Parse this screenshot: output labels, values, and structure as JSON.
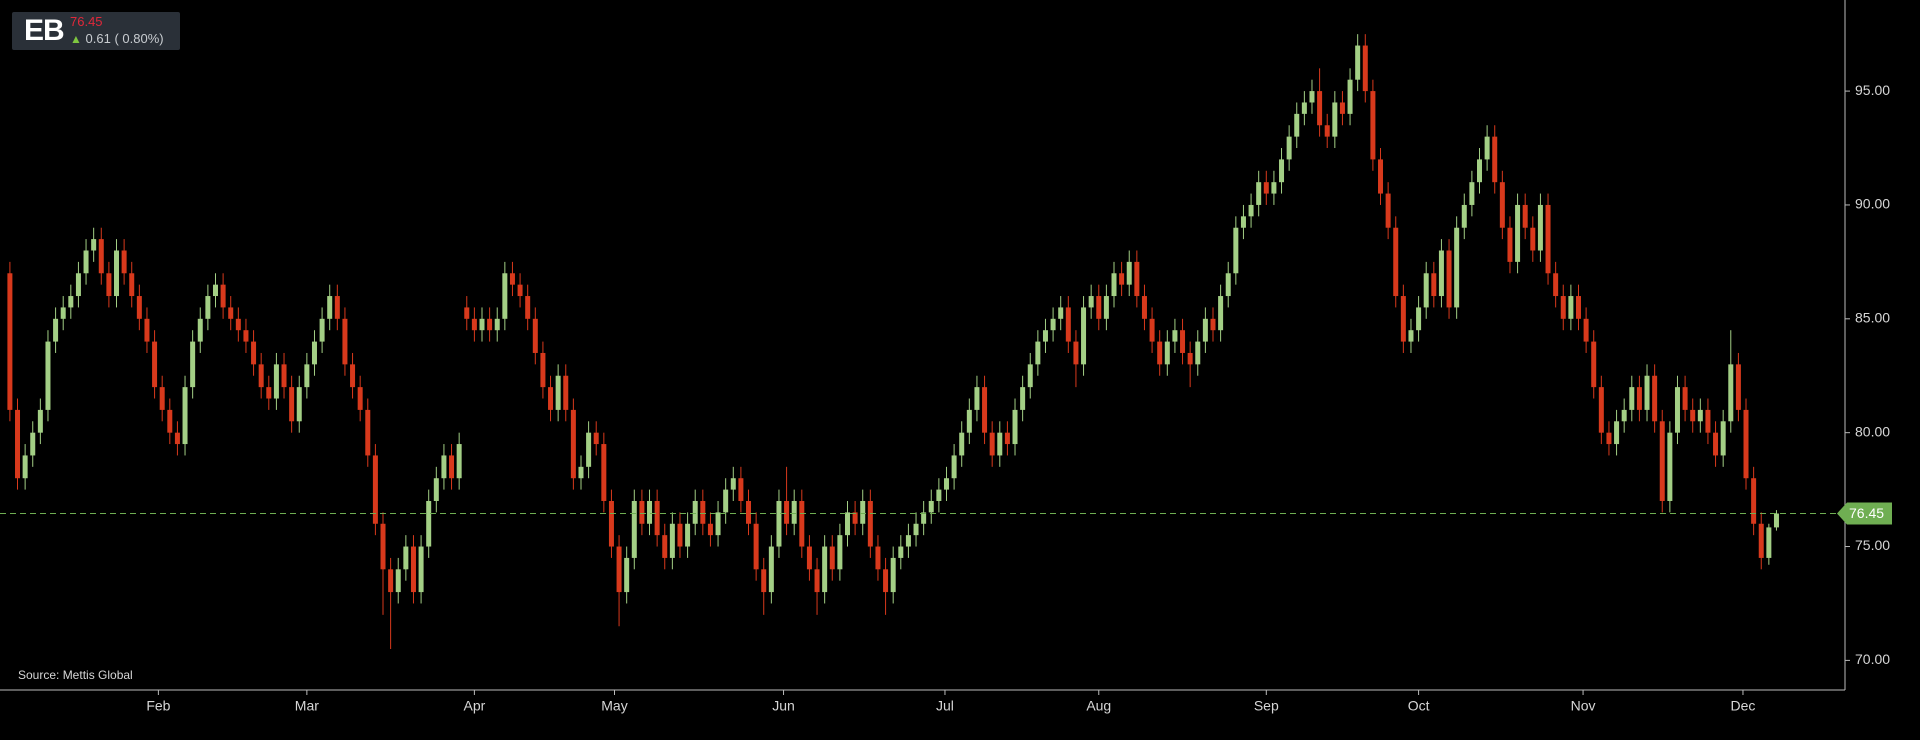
{
  "chart_data": {
    "type": "candlestick",
    "symbol": "EB",
    "last_price": 76.45,
    "change": 0.61,
    "change_percent_label": "( 0.80%)",
    "source": "Source: Mettis Global",
    "up_color": "#a3cf85",
    "down_color": "#d8391c",
    "last_price_color": "#6fae52",
    "ylim": [
      68.7,
      99
    ],
    "yticks": [
      {
        "value": 70,
        "label": "70.00"
      },
      {
        "value": 75,
        "label": "75.00"
      },
      {
        "value": 80,
        "label": "80.00"
      },
      {
        "value": 85,
        "label": "85.00"
      },
      {
        "value": 90,
        "label": "90.00"
      },
      {
        "value": 95,
        "label": "95.00"
      }
    ],
    "xlim": [
      -1.3,
      241
    ],
    "xticks": [
      {
        "value": 19.5,
        "label": "Feb"
      },
      {
        "value": 39,
        "label": "Mar"
      },
      {
        "value": 61,
        "label": "Apr"
      },
      {
        "value": 79.4,
        "label": "May"
      },
      {
        "value": 101.6,
        "label": "Jun"
      },
      {
        "value": 122.8,
        "label": "Jul"
      },
      {
        "value": 143,
        "label": "Aug"
      },
      {
        "value": 165,
        "label": "Sep"
      },
      {
        "value": 185,
        "label": "Oct"
      },
      {
        "value": 206.6,
        "label": "Nov"
      },
      {
        "value": 227.6,
        "label": "Dec"
      }
    ],
    "open": [
      87,
      81,
      78,
      79,
      80,
      81,
      84,
      85,
      85.5,
      86,
      87,
      88,
      88.5,
      87,
      86,
      88,
      87,
      86,
      85,
      84,
      82,
      81,
      80,
      79.5,
      82,
      84,
      85,
      86,
      86.5,
      85.5,
      85,
      84.5,
      84,
      83,
      82,
      81.5,
      83,
      82,
      80.5,
      82,
      83,
      84,
      85,
      86,
      85,
      83,
      82,
      81,
      79,
      76,
      74,
      73,
      74,
      75,
      73,
      75,
      77,
      78,
      79,
      78,
      85.5,
      85,
      84.5,
      85,
      84.5,
      85,
      87,
      86.5,
      86,
      85,
      83.5,
      82,
      81,
      82.5,
      81,
      78,
      78.5,
      80,
      79.5,
      77,
      75,
      73,
      74.5,
      77,
      76,
      77,
      75.5,
      74.5,
      76,
      75,
      76,
      77,
      76,
      75.5,
      76.5,
      77.5,
      78,
      77,
      76,
      74,
      73,
      75,
      77,
      76,
      77,
      75,
      74,
      73,
      75,
      74,
      75.5,
      76.5,
      76,
      77,
      75,
      74,
      73,
      74.5,
      75,
      75.5,
      76,
      76.5,
      77,
      77.5,
      78,
      79,
      80,
      81,
      82,
      80,
      79,
      80,
      79.5,
      81,
      82,
      83,
      84,
      84.5,
      85,
      85.5,
      84,
      83,
      85.5,
      86,
      85,
      86,
      87,
      86.5,
      87.5,
      86,
      85,
      84,
      83,
      84,
      84.5,
      83.5,
      83,
      84,
      85,
      84.5,
      86,
      87,
      89,
      89.5,
      90,
      91,
      90.5,
      91,
      92,
      93,
      94,
      94.5,
      95,
      93.5,
      93,
      94.5,
      94,
      95.5,
      97,
      95,
      92,
      90.5,
      89,
      86,
      84,
      84.5,
      85.5,
      87,
      86,
      88,
      85.5,
      89,
      90,
      91,
      92,
      93,
      91,
      89,
      87.5,
      90,
      89,
      88,
      90,
      87,
      86,
      85,
      86,
      85,
      84,
      82,
      80,
      79.5,
      80.5,
      81,
      82,
      81,
      82.5,
      80.5,
      77,
      80,
      82,
      81,
      80.5,
      81,
      80,
      79,
      80.5,
      83,
      81,
      78,
      76,
      74.5,
      75.84
    ],
    "high": [
      87.5,
      81.5,
      79.5,
      80.5,
      81.5,
      84.5,
      85.5,
      86,
      86.5,
      87.5,
      88.5,
      89,
      89,
      87.5,
      88.5,
      88.5,
      87.5,
      86.5,
      85.5,
      84.5,
      82.5,
      81.5,
      80.5,
      82.5,
      84.5,
      85.5,
      86.5,
      87,
      87,
      86,
      85.5,
      85,
      84.5,
      83.5,
      82.5,
      83.5,
      83.5,
      82.5,
      82.5,
      83.5,
      84.5,
      85.5,
      86.5,
      86.5,
      85.5,
      83.5,
      82.5,
      81.5,
      79.5,
      76.5,
      74.5,
      74.5,
      75.5,
      75.5,
      75.5,
      77.5,
      78.5,
      79.5,
      79.5,
      80,
      86,
      85.5,
      85.5,
      85.5,
      85.5,
      87.5,
      87.5,
      87,
      86.5,
      85.5,
      84,
      82.5,
      83,
      83,
      81.5,
      79,
      80.5,
      80.5,
      80,
      77.5,
      75.5,
      75,
      77.5,
      77.5,
      77.5,
      77.5,
      76,
      76.5,
      76.5,
      76.5,
      77.5,
      77.5,
      76.5,
      77,
      78,
      78.5,
      78.5,
      77.5,
      76.5,
      74.5,
      75.5,
      77.5,
      78.5,
      77.5,
      77.5,
      75.5,
      74.5,
      75.5,
      75.5,
      76,
      77,
      77,
      77.5,
      77.5,
      75.5,
      74.5,
      75,
      75.5,
      76,
      76.5,
      77,
      77.5,
      78,
      78.5,
      79.5,
      80.5,
      81.5,
      82.5,
      82.5,
      80.5,
      80.5,
      80.5,
      81.5,
      82.5,
      83.5,
      84.5,
      85,
      85.5,
      86,
      86,
      84.5,
      86,
      86.5,
      86.5,
      86.5,
      87.5,
      87.5,
      88,
      88,
      86.5,
      85.5,
      84.5,
      84.5,
      85,
      85,
      84,
      84.5,
      85.5,
      85.5,
      86.5,
      87.5,
      89.5,
      90,
      90.5,
      91.5,
      91.5,
      91.5,
      92.5,
      93.5,
      94.5,
      95,
      95.5,
      96,
      94,
      95,
      95,
      96,
      97.5,
      97.5,
      95.5,
      92.5,
      91,
      89.5,
      86.5,
      85,
      86,
      87.5,
      87.5,
      88.5,
      88.5,
      89.5,
      90.5,
      91.5,
      92.5,
      93.5,
      93.5,
      91.5,
      89.5,
      90.5,
      90.5,
      89.5,
      90.5,
      90.5,
      87.5,
      86.5,
      86.5,
      86.5,
      85.5,
      84.5,
      82.5,
      80.5,
      81,
      81.5,
      82.5,
      82.5,
      83,
      83,
      81,
      80.5,
      82.5,
      82.5,
      81.5,
      81.5,
      81.5,
      80.5,
      81,
      84.5,
      83.5,
      81.5,
      78.5,
      76.5,
      76,
      76.6
    ],
    "low": [
      80.5,
      77.5,
      77.5,
      78.5,
      79.5,
      80.5,
      83.5,
      84.5,
      85,
      85.5,
      86.5,
      87.5,
      86.5,
      85.5,
      85.5,
      86.5,
      85.5,
      84.5,
      83.5,
      81.5,
      80.5,
      79.5,
      79,
      79,
      81.5,
      83.5,
      84.5,
      85.5,
      85,
      84.5,
      84,
      83.5,
      82.5,
      81.5,
      81,
      81,
      81.5,
      80,
      80,
      81.5,
      82.5,
      83.5,
      84.5,
      84.5,
      82.5,
      81.5,
      80.5,
      78.5,
      75.5,
      72,
      70.5,
      72.5,
      73.5,
      72.5,
      72.5,
      74.5,
      76.5,
      77.5,
      77.5,
      77.5,
      84.5,
      84,
      84,
      84,
      84,
      84.5,
      86,
      85.5,
      84.5,
      83,
      81.5,
      80.5,
      80.5,
      80.5,
      77.5,
      77.5,
      78,
      79,
      76.5,
      74.5,
      71.5,
      72.5,
      74,
      75.5,
      75.5,
      75,
      74,
      74,
      74.5,
      74.5,
      75.5,
      75.5,
      75,
      75,
      76,
      77,
      76.5,
      75.5,
      73.5,
      72,
      72.5,
      74.5,
      75.5,
      75.5,
      74.5,
      73.5,
      72,
      72.5,
      73.5,
      73.5,
      75,
      75.5,
      75.5,
      74.5,
      73.5,
      72,
      72.5,
      74,
      74.5,
      75,
      75.5,
      76,
      76.5,
      77,
      77.5,
      78.5,
      79.5,
      80.5,
      79.5,
      78.5,
      78.5,
      79,
      79,
      80.5,
      81.5,
      82.5,
      83.5,
      84,
      84.5,
      83.5,
      82,
      82.5,
      85,
      84.5,
      84.5,
      85.5,
      86,
      86,
      85.5,
      84.5,
      83.5,
      82.5,
      82.5,
      83.5,
      83,
      82,
      82.5,
      83.5,
      84,
      84,
      85.5,
      86.5,
      88.5,
      89,
      89.5,
      90,
      90,
      90.5,
      91.5,
      92.5,
      93.5,
      94,
      93,
      92.5,
      92.5,
      93.5,
      93.5,
      95,
      94.5,
      91.5,
      90,
      88.5,
      85.5,
      83.5,
      83.5,
      84,
      85,
      85.5,
      85.5,
      85,
      85,
      88.5,
      89.5,
      90.5,
      91.5,
      90.5,
      88.5,
      87,
      87,
      88.5,
      87.5,
      87.5,
      86.5,
      85.5,
      84.5,
      84.5,
      84.5,
      83.5,
      81.5,
      79.5,
      79,
      79,
      80,
      80.5,
      80.5,
      80.5,
      80,
      76.5,
      76.5,
      79.5,
      80.5,
      80,
      80,
      79.5,
      78.5,
      78.5,
      80,
      80.5,
      77.5,
      75.5,
      74,
      74.2,
      75.7
    ],
    "close": [
      81,
      78,
      79,
      80,
      81,
      84,
      85,
      85.5,
      86,
      87,
      88,
      88.5,
      87,
      86,
      88,
      87,
      86,
      85,
      84,
      82,
      81,
      80,
      79.5,
      82,
      84,
      85,
      86,
      86.5,
      85.5,
      85,
      84.5,
      84,
      83,
      82,
      81.5,
      83,
      82,
      80.5,
      82,
      83,
      84,
      85,
      86,
      85,
      83,
      82,
      81,
      79,
      76,
      74,
      73,
      74,
      75,
      73,
      75,
      77,
      78,
      79,
      78,
      79.5,
      85,
      84.5,
      85,
      84.5,
      85,
      87,
      86.5,
      86,
      85,
      83.5,
      82,
      81,
      82.5,
      81,
      78,
      78.5,
      80,
      79.5,
      77,
      75,
      73,
      74.5,
      77,
      76,
      77,
      75.5,
      74.5,
      76,
      75,
      76,
      77,
      76,
      75.5,
      76.5,
      77.5,
      78,
      77,
      76,
      74,
      73,
      75,
      77,
      76,
      77,
      75,
      74,
      73,
      75,
      74,
      75.5,
      76.5,
      76,
      77,
      75,
      74,
      73,
      74.5,
      75,
      75.5,
      76,
      76.5,
      77,
      77.5,
      78,
      79,
      80,
      81,
      82,
      80,
      79,
      80,
      79.5,
      81,
      82,
      83,
      84,
      84.5,
      85,
      85.5,
      84,
      83,
      85.5,
      86,
      85,
      86,
      87,
      86.5,
      87.5,
      86,
      85,
      84,
      83,
      84,
      84.5,
      83.5,
      83,
      84,
      85,
      84.5,
      86,
      87,
      89,
      89.5,
      90,
      91,
      90.5,
      91,
      92,
      93,
      94,
      94.5,
      95,
      93.5,
      93,
      94.5,
      94,
      95.5,
      97,
      95,
      92,
      90.5,
      89,
      86,
      84,
      84.5,
      85.5,
      87,
      86,
      88,
      85.5,
      89,
      90,
      91,
      92,
      93,
      91,
      89,
      87.5,
      90,
      89,
      88,
      90,
      87,
      86,
      85,
      86,
      85,
      84,
      82,
      80,
      79.5,
      80.5,
      81,
      82,
      81,
      82.5,
      80.5,
      77,
      80,
      82,
      81,
      80.5,
      81,
      80,
      79,
      80.5,
      83,
      81,
      78,
      76,
      74.5,
      75.84,
      76.45
    ]
  }
}
